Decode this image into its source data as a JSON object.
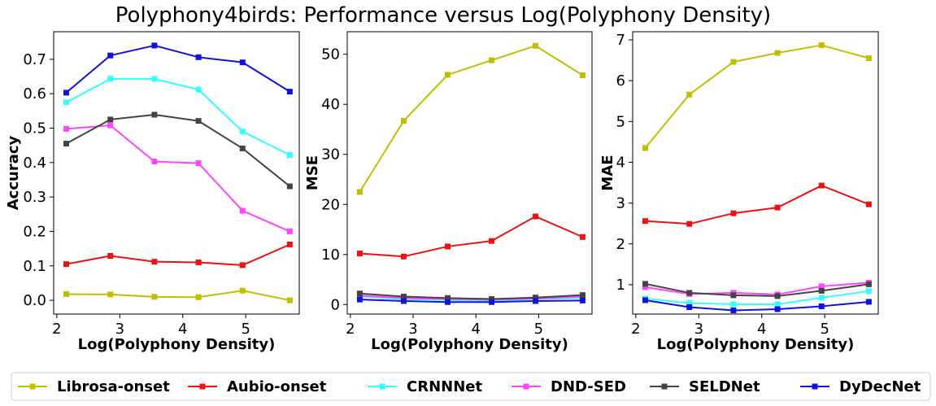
{
  "title": "Polyphony4birds: Performance versus Log(Polyphony Density)",
  "colors": {
    "Librosa-onset": "#bfbf00",
    "Aubio-onset": "#ee1111",
    "CRNNNet": "#33ffff",
    "DND-SED": "#ff44ff",
    "SELDNet": "#444444",
    "DyDecNet": "#1111dd"
  },
  "legend": {
    "placement": "bottom",
    "entries": [
      "Librosa-onset",
      "Aubio-onset",
      "CRNNNet",
      "DND-SED",
      "SELDNet",
      "DyDecNet"
    ]
  },
  "chart_data": [
    {
      "type": "line",
      "xlabel": "Log(Polyphony Density)",
      "ylabel": "Accuracy",
      "xlim": [
        1.95,
        5.85
      ],
      "ylim": [
        -0.04,
        0.78
      ],
      "xticks": [
        2,
        3,
        4,
        5
      ],
      "xtick_labels": [
        "2",
        "3",
        "4",
        "5"
      ],
      "yticks": [
        0.0,
        0.1,
        0.2,
        0.3,
        0.4,
        0.5,
        0.6,
        0.7
      ],
      "ytick_labels": [
        "0.0",
        "0.1",
        "0.2",
        "0.3",
        "0.4",
        "0.5",
        "0.6",
        "0.7"
      ],
      "x": [
        2.15,
        2.85,
        3.55,
        4.25,
        4.95,
        5.7
      ],
      "series": [
        {
          "name": "Librosa-onset",
          "values": [
            0.018,
            0.017,
            0.01,
            0.009,
            0.028,
            0.0
          ]
        },
        {
          "name": "Aubio-onset",
          "values": [
            0.105,
            0.129,
            0.112,
            0.11,
            0.102,
            0.162
          ]
        },
        {
          "name": "CRNNNet",
          "values": [
            0.575,
            0.643,
            0.643,
            0.612,
            0.49,
            0.422
          ]
        },
        {
          "name": "DND-SED",
          "values": [
            0.498,
            0.508,
            0.403,
            0.398,
            0.26,
            0.2
          ]
        },
        {
          "name": "SELDNet",
          "values": [
            0.455,
            0.525,
            0.539,
            0.521,
            0.441,
            0.331
          ]
        },
        {
          "name": "DyDecNet",
          "values": [
            0.603,
            0.711,
            0.74,
            0.706,
            0.691,
            0.606
          ]
        }
      ]
    },
    {
      "type": "line",
      "xlabel": "Log(Polyphony Density)",
      "ylabel": "MSE",
      "xlim": [
        1.95,
        5.85
      ],
      "ylim": [
        -1.9,
        54.5
      ],
      "xticks": [
        2,
        3,
        4,
        5
      ],
      "xtick_labels": [
        "2",
        "3",
        "4",
        "5"
      ],
      "yticks": [
        0,
        10,
        20,
        30,
        40,
        50
      ],
      "ytick_labels": [
        "0",
        "10",
        "20",
        "30",
        "40",
        "50"
      ],
      "x": [
        2.15,
        2.85,
        3.55,
        4.25,
        4.95,
        5.7
      ],
      "series": [
        {
          "name": "Librosa-onset",
          "values": [
            22.5,
            36.7,
            45.9,
            48.8,
            51.7,
            45.8
          ]
        },
        {
          "name": "Aubio-onset",
          "values": [
            10.2,
            9.6,
            11.6,
            12.7,
            17.6,
            13.5
          ]
        },
        {
          "name": "CRNNNet",
          "values": [
            1.6,
            1.1,
            0.9,
            0.8,
            1.1,
            1.3
          ]
        },
        {
          "name": "DND-SED",
          "values": [
            1.8,
            1.3,
            1.1,
            1.0,
            1.2,
            1.6
          ]
        },
        {
          "name": "SELDNet",
          "values": [
            2.2,
            1.6,
            1.3,
            1.1,
            1.4,
            1.9
          ]
        },
        {
          "name": "DyDecNet",
          "values": [
            1.0,
            0.7,
            0.5,
            0.5,
            0.7,
            0.8
          ]
        }
      ]
    },
    {
      "type": "line",
      "xlabel": "Log(Polyphony Density)",
      "ylabel": "MAE",
      "xlim": [
        1.95,
        5.85
      ],
      "ylim": [
        0.28,
        7.2
      ],
      "xticks": [
        2,
        3,
        4,
        5
      ],
      "xtick_labels": [
        "2",
        "3",
        "4",
        "5"
      ],
      "yticks": [
        1,
        2,
        3,
        4,
        5,
        6,
        7
      ],
      "ytick_labels": [
        "1",
        "2",
        "3",
        "4",
        "5",
        "6",
        "7"
      ],
      "x": [
        2.15,
        2.85,
        3.55,
        4.25,
        4.95,
        5.7
      ],
      "series": [
        {
          "name": "Librosa-onset",
          "values": [
            4.35,
            5.66,
            6.46,
            6.68,
            6.87,
            6.55
          ]
        },
        {
          "name": "Aubio-onset",
          "values": [
            2.56,
            2.49,
            2.75,
            2.89,
            3.43,
            2.97
          ]
        },
        {
          "name": "CRNNNet",
          "values": [
            0.66,
            0.55,
            0.52,
            0.52,
            0.68,
            0.84
          ]
        },
        {
          "name": "DND-SED",
          "values": [
            0.94,
            0.77,
            0.8,
            0.76,
            0.96,
            1.05
          ]
        },
        {
          "name": "SELDNet",
          "values": [
            1.02,
            0.8,
            0.74,
            0.72,
            0.85,
            1.01
          ]
        },
        {
          "name": "DyDecNet",
          "values": [
            0.62,
            0.45,
            0.37,
            0.4,
            0.47,
            0.58
          ]
        }
      ]
    }
  ]
}
